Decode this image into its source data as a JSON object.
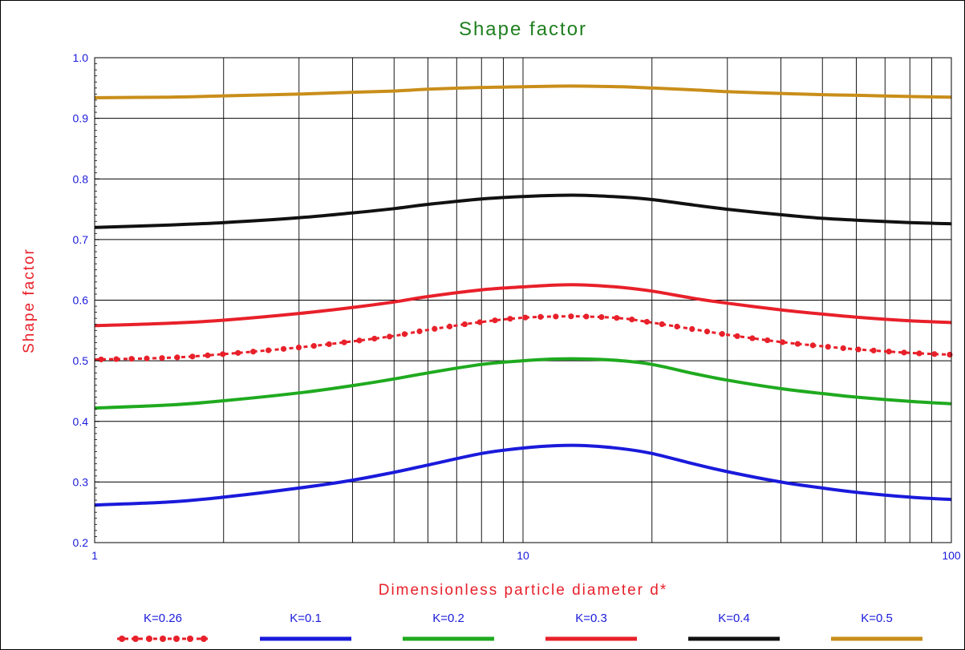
{
  "chart_data": {
    "type": "line",
    "title": "Shape factor",
    "xlabel": "Dimensionless particle diameter d*",
    "ylabel": "Shape factor",
    "x_scale": "log",
    "xlim": [
      1,
      100
    ],
    "ylim": [
      0.2,
      1.0
    ],
    "x_ticks": [
      "1",
      "10",
      "100"
    ],
    "y_ticks": [
      "0.2",
      "0.3",
      "0.4",
      "0.5",
      "0.6",
      "0.7",
      "0.8",
      "0.9",
      "1.0"
    ],
    "grid": true,
    "legend_position": "bottom",
    "colors": {
      "title": "#1f7f1f",
      "axis_title": "#e8202a",
      "tick": "#1a1adb",
      "grid": "#000000"
    },
    "series": [
      {
        "name": "K=0.26",
        "color": "#e8202a",
        "style": "dotted",
        "x": [
          1,
          1.5,
          2,
          3,
          4,
          5,
          6,
          8,
          10,
          12,
          14,
          17,
          20,
          25,
          30,
          40,
          50,
          60,
          80,
          100
        ],
        "y": [
          0.502,
          0.505,
          0.511,
          0.522,
          0.532,
          0.541,
          0.551,
          0.564,
          0.571,
          0.573,
          0.573,
          0.57,
          0.563,
          0.552,
          0.543,
          0.531,
          0.524,
          0.519,
          0.513,
          0.51
        ]
      },
      {
        "name": "K=0.1",
        "color": "#1a1adb",
        "style": "solid",
        "x": [
          1,
          1.5,
          2,
          3,
          4,
          5,
          6,
          8,
          10,
          12,
          14,
          17,
          20,
          25,
          30,
          40,
          50,
          60,
          80,
          100
        ],
        "y": [
          0.262,
          0.267,
          0.275,
          0.29,
          0.303,
          0.316,
          0.328,
          0.347,
          0.356,
          0.36,
          0.36,
          0.355,
          0.347,
          0.33,
          0.317,
          0.3,
          0.29,
          0.283,
          0.275,
          0.271
        ]
      },
      {
        "name": "K=0.2",
        "color": "#1faa1f",
        "style": "solid",
        "x": [
          1,
          1.5,
          2,
          3,
          4,
          5,
          6,
          8,
          10,
          12,
          14,
          17,
          20,
          25,
          30,
          40,
          50,
          60,
          80,
          100
        ],
        "y": [
          0.422,
          0.427,
          0.434,
          0.447,
          0.459,
          0.47,
          0.48,
          0.494,
          0.5,
          0.503,
          0.503,
          0.5,
          0.494,
          0.479,
          0.468,
          0.454,
          0.446,
          0.44,
          0.433,
          0.429
        ]
      },
      {
        "name": "K=0.3",
        "color": "#e8202a",
        "style": "solid",
        "x": [
          1,
          1.5,
          2,
          3,
          4,
          5,
          6,
          8,
          10,
          12,
          14,
          17,
          20,
          25,
          30,
          40,
          50,
          60,
          80,
          100
        ],
        "y": [
          0.558,
          0.562,
          0.567,
          0.578,
          0.588,
          0.597,
          0.606,
          0.617,
          0.622,
          0.625,
          0.625,
          0.621,
          0.615,
          0.603,
          0.595,
          0.584,
          0.577,
          0.572,
          0.566,
          0.563
        ]
      },
      {
        "name": "K=0.4",
        "color": "#111111",
        "style": "solid",
        "x": [
          1,
          1.5,
          2,
          3,
          4,
          5,
          6,
          8,
          10,
          12,
          14,
          17,
          20,
          25,
          30,
          40,
          50,
          60,
          80,
          100
        ],
        "y": [
          0.72,
          0.724,
          0.728,
          0.736,
          0.744,
          0.751,
          0.758,
          0.767,
          0.771,
          0.773,
          0.773,
          0.77,
          0.766,
          0.757,
          0.75,
          0.741,
          0.735,
          0.732,
          0.728,
          0.726
        ]
      },
      {
        "name": "K=0.5",
        "color": "#c98e1a",
        "style": "solid",
        "x": [
          1,
          1.5,
          2,
          3,
          4,
          5,
          6,
          8,
          10,
          12,
          14,
          17,
          20,
          25,
          30,
          40,
          50,
          60,
          80,
          100
        ],
        "y": [
          0.934,
          0.935,
          0.937,
          0.94,
          0.943,
          0.945,
          0.948,
          0.951,
          0.952,
          0.953,
          0.953,
          0.952,
          0.95,
          0.947,
          0.944,
          0.941,
          0.939,
          0.938,
          0.936,
          0.935
        ]
      }
    ]
  }
}
